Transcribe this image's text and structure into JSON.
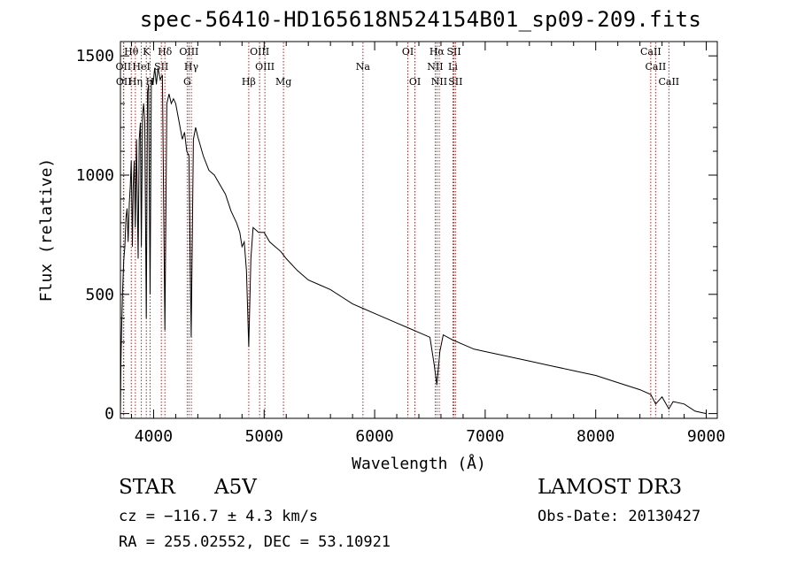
{
  "title": "spec-56410-HD165618N524154B01_sp09-209.fits",
  "footer": {
    "object_class": "STAR",
    "subclass": "A5V",
    "cz": "cz = −116.7 ± 4.3 km/s",
    "ra_dec": "RA = 255.02552, DEC =  53.10921",
    "survey": "LAMOST DR3",
    "obs_date": "Obs-Date: 20130427"
  },
  "chart_data": {
    "type": "line",
    "title": "spec-56410-HD165618N524154B01_sp09-209.fits",
    "xlabel": "Wavelength (Å)",
    "ylabel": "Flux (relative)",
    "xlim": [
      3700,
      9100
    ],
    "ylim": [
      -20,
      1560
    ],
    "xticks": [
      4000,
      5000,
      6000,
      7000,
      8000,
      9000
    ],
    "yticks": [
      0,
      500,
      1000,
      1500
    ],
    "series": [
      {
        "name": "spectrum",
        "color": "#000000",
        "x": [
          3700,
          3705,
          3712,
          3720,
          3730,
          3740,
          3750,
          3760,
          3770,
          3780,
          3790,
          3798,
          3808,
          3815,
          3825,
          3835,
          3845,
          3860,
          3870,
          3880,
          3889,
          3900,
          3910,
          3920,
          3934,
          3945,
          3955,
          3968,
          3980,
          3995,
          4010,
          4025,
          4040,
          4060,
          4080,
          4102,
          4120,
          4140,
          4160,
          4180,
          4200,
          4220,
          4240,
          4260,
          4280,
          4300,
          4320,
          4340,
          4360,
          4380,
          4400,
          4450,
          4500,
          4550,
          4600,
          4650,
          4700,
          4750,
          4780,
          4800,
          4820,
          4840,
          4861,
          4880,
          4900,
          4950,
          5000,
          5050,
          5100,
          5150,
          5200,
          5300,
          5400,
          5500,
          5600,
          5700,
          5800,
          5900,
          6000,
          6100,
          6200,
          6300,
          6400,
          6500,
          6540,
          6563,
          6590,
          6620,
          6700,
          6800,
          6900,
          7000,
          7200,
          7400,
          7600,
          7800,
          8000,
          8200,
          8400,
          8498,
          8542,
          8600,
          8662,
          8700,
          8800,
          8900,
          9000
        ],
        "y": [
          0,
          230,
          380,
          520,
          640,
          700,
          820,
          860,
          720,
          880,
          960,
          1060,
          700,
          950,
          1060,
          780,
          1150,
          650,
          1150,
          1220,
          700,
          1250,
          1300,
          1220,
          400,
          1350,
          1380,
          500,
          1400,
          1380,
          1450,
          1380,
          1450,
          1400,
          1420,
          350,
          1300,
          1340,
          1300,
          1320,
          1300,
          1250,
          1200,
          1150,
          1180,
          1100,
          1080,
          320,
          1150,
          1200,
          1160,
          1080,
          1020,
          1000,
          960,
          920,
          850,
          800,
          760,
          700,
          720,
          600,
          280,
          650,
          780,
          760,
          760,
          720,
          700,
          680,
          650,
          600,
          560,
          540,
          520,
          490,
          460,
          440,
          420,
          400,
          380,
          360,
          340,
          320,
          200,
          120,
          260,
          330,
          310,
          290,
          270,
          260,
          240,
          220,
          200,
          180,
          160,
          130,
          100,
          80,
          40,
          70,
          20,
          50,
          40,
          10,
          0
        ]
      }
    ],
    "lines": [
      {
        "label": "Hθ",
        "wave": 3798,
        "row": 1
      },
      {
        "label": "OII",
        "wave": 3727,
        "row": 2
      },
      {
        "label": "OII",
        "wave": 3730,
        "row": 3
      },
      {
        "label": "Hη",
        "wave": 3835,
        "row": 3
      },
      {
        "label": "HeI",
        "wave": 3889,
        "row": 2
      },
      {
        "label": "K",
        "wave": 3934,
        "row": 1
      },
      {
        "label": "H",
        "wave": 3968,
        "row": 3
      },
      {
        "label": "SII",
        "wave": 4070,
        "row": 2
      },
      {
        "label": "Hδ",
        "wave": 4102,
        "row": 1
      },
      {
        "label": "OIII",
        "wave": 4320,
        "row": 1
      },
      {
        "label": "Hγ",
        "wave": 4341,
        "row": 2
      },
      {
        "label": "G",
        "wave": 4304,
        "row": 3
      },
      {
        "label": "Hβ",
        "wave": 4861,
        "row": 3
      },
      {
        "label": "OIII",
        "wave": 4959,
        "row": 1
      },
      {
        "label": "OIII",
        "wave": 5007,
        "row": 2
      },
      {
        "label": "Mg",
        "wave": 5175,
        "row": 3
      },
      {
        "label": "Na",
        "wave": 5894,
        "row": 2
      },
      {
        "label": "OI",
        "wave": 6300,
        "row": 1
      },
      {
        "label": "OI",
        "wave": 6364,
        "row": 3
      },
      {
        "label": "Hα",
        "wave": 6563,
        "row": 1
      },
      {
        "label": "NII",
        "wave": 6548,
        "row": 2
      },
      {
        "label": "NII",
        "wave": 6584,
        "row": 3
      },
      {
        "label": "SII",
        "wave": 6717,
        "row": 1
      },
      {
        "label": "Li",
        "wave": 6708,
        "row": 2
      },
      {
        "label": "SII",
        "wave": 6731,
        "row": 3
      },
      {
        "label": "CaII",
        "wave": 8498,
        "row": 1
      },
      {
        "label": "CaII",
        "wave": 8542,
        "row": 2
      },
      {
        "label": "CaII",
        "wave": 8662,
        "row": 3
      }
    ]
  }
}
